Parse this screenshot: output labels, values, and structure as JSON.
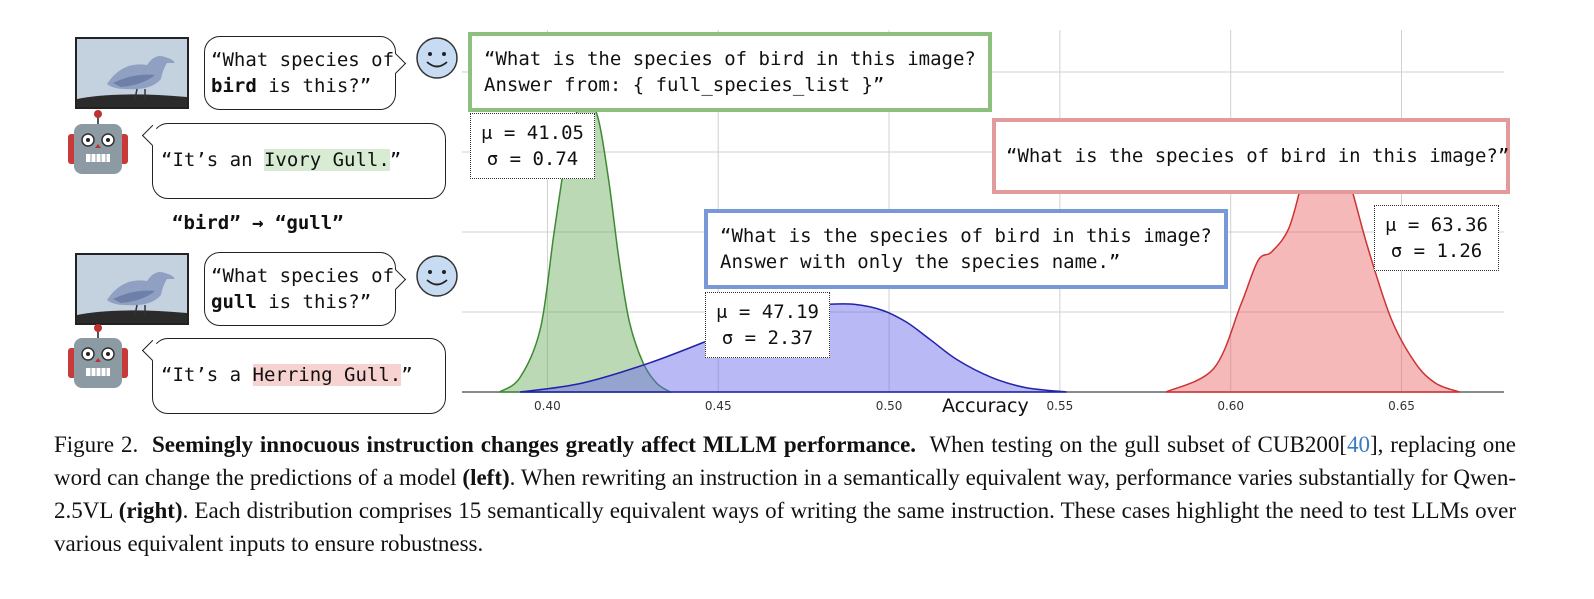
{
  "left_panel": {
    "q1_pre": "“What species of",
    "q1_bold": "bird",
    "q1_post": " is this?”",
    "a1_pre": "“It’s an ",
    "a1_hl": "Ivory Gull.",
    "a1_post": "”",
    "arrow_label": "“bird” → “gull”",
    "q2_pre": "“What species of",
    "q2_bold": "gull",
    "q2_post": " is this?”",
    "a2_pre": "“It’s a ",
    "a2_hl": "Herring Gull.",
    "a2_post": "”"
  },
  "prompts": {
    "green": "“What is the species of bird in this image?\nAnswer from: { full_species_list }”",
    "red": "“What is the species of bird in this image?”",
    "blue": "“What is the species of bird in this image?\nAnswer with only the species name.”"
  },
  "stats": {
    "green": "μ = 41.05\nσ = 0.74",
    "blue": "μ = 47.19\nσ = 2.37",
    "red": "μ = 63.36\nσ = 1.26"
  },
  "colors": {
    "green": "#6aaa5e",
    "blue": "#5a7fd0",
    "red": "#e28a8a"
  },
  "chart_data": {
    "type": "area",
    "xlabel": "Accuracy",
    "ylabel": "",
    "xlim": [
      0.375,
      0.68
    ],
    "xticks": [
      "0.40",
      "0.45",
      "0.50",
      "0.55",
      "0.60",
      "0.65"
    ],
    "grid": true,
    "series": [
      {
        "color": "#6aaa5e",
        "x": [
          0.386,
          0.392,
          0.398,
          0.402,
          0.406,
          0.409,
          0.412,
          0.415,
          0.418,
          0.421,
          0.424,
          0.428,
          0.432,
          0.436
        ],
        "y": [
          0.0,
          0.05,
          0.22,
          0.55,
          0.85,
          0.97,
          1.0,
          0.93,
          0.72,
          0.45,
          0.24,
          0.1,
          0.03,
          0.0
        ]
      },
      {
        "color": "#5a7fd0",
        "x": [
          0.392,
          0.41,
          0.43,
          0.45,
          0.465,
          0.475,
          0.482,
          0.49,
          0.498,
          0.505,
          0.512,
          0.52,
          0.53,
          0.54,
          0.552
        ],
        "y": [
          0.0,
          0.03,
          0.1,
          0.19,
          0.26,
          0.29,
          0.3,
          0.3,
          0.28,
          0.24,
          0.18,
          0.11,
          0.05,
          0.015,
          0.0
        ]
      },
      {
        "color": "#e28a8a",
        "x": [
          0.581,
          0.595,
          0.603,
          0.608,
          0.612,
          0.617,
          0.621,
          0.625,
          0.629,
          0.634,
          0.64,
          0.647,
          0.654,
          0.66,
          0.667
        ],
        "y": [
          0.0,
          0.08,
          0.3,
          0.45,
          0.48,
          0.56,
          0.72,
          0.85,
          0.87,
          0.75,
          0.5,
          0.25,
          0.1,
          0.03,
          0.0
        ]
      }
    ]
  },
  "caption": {
    "fig": "Figure 2.",
    "bold": "Seemingly innocuous instruction changes greatly affect MLLM performance.",
    "part1": "When testing on the gull subset of CUB200[",
    "cite": "40",
    "part2": "], replacing one word can change the predictions of a model ",
    "left": "(left)",
    "part3": ". When rewriting an instruction in a semantically equivalent way, performance varies substantially for Qwen-2.5VL ",
    "right": "(right)",
    "part4": ". Each distribution comprises 15 semantically equivalent ways of writing the same instruction. These cases highlight the need to test LLMs over various equivalent inputs to ensure robustness."
  }
}
